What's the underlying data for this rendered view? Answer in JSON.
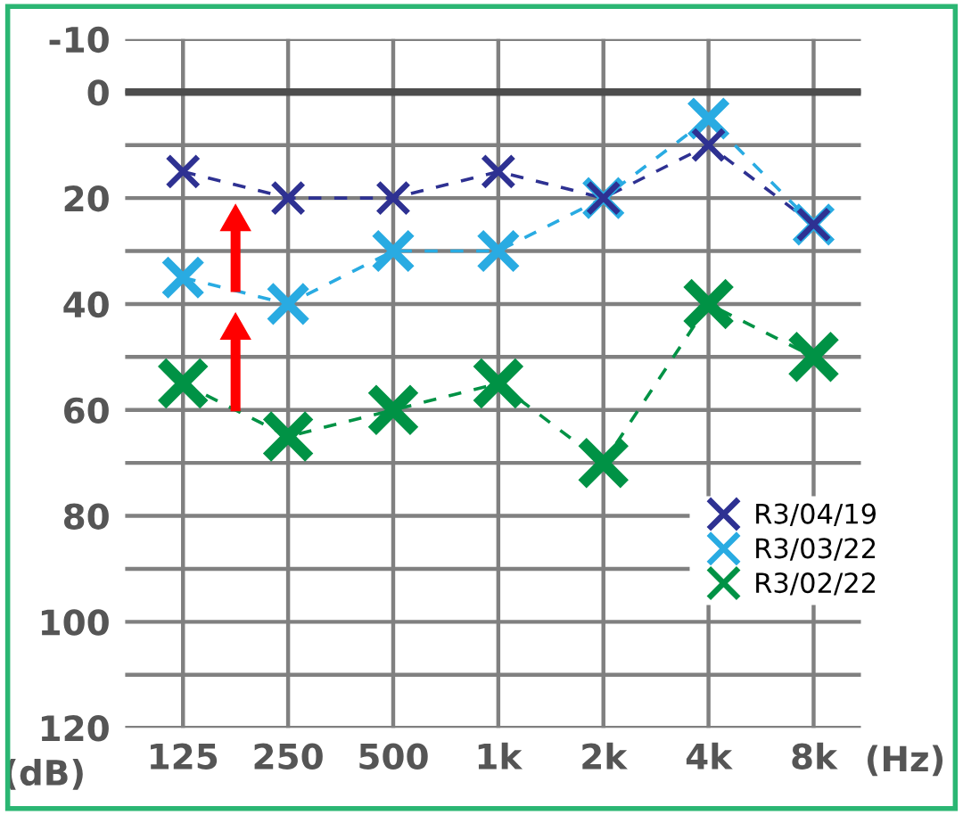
{
  "chart_data": {
    "type": "line",
    "xlabel": "(Hz)",
    "ylabel": "(dB)",
    "categories": [
      "125",
      "250",
      "500",
      "1k",
      "2k",
      "4k",
      "8k"
    ],
    "series": [
      {
        "name": "R3/04/19",
        "color": "#2e3192",
        "values": [
          15,
          20,
          20,
          15,
          20,
          10,
          25
        ]
      },
      {
        "name": "R3/03/22",
        "color": "#29abe2",
        "values": [
          35,
          40,
          30,
          30,
          20,
          5,
          25
        ]
      },
      {
        "name": "R3/02/22",
        "color": "#009245",
        "values": [
          55,
          65,
          60,
          55,
          70,
          40,
          50
        ]
      }
    ],
    "ylim": [
      120,
      -10
    ],
    "yticks": [
      -10,
      0,
      {
        "value": 10,
        "label": null
      },
      20,
      {
        "value": 30,
        "label": null
      },
      40,
      {
        "value": 50,
        "label": null
      },
      60,
      {
        "value": 70,
        "label": null
      },
      80,
      {
        "value": 90,
        "label": null
      },
      100,
      {
        "value": 110,
        "label": null
      },
      120
    ],
    "ref_lines": [
      {
        "axis": "y",
        "value": 0,
        "label": null,
        "color": "#4d4d4d"
      }
    ],
    "grid": true,
    "legend": "bottom right",
    "marker": "cross",
    "line_style": "dashed"
  }
}
